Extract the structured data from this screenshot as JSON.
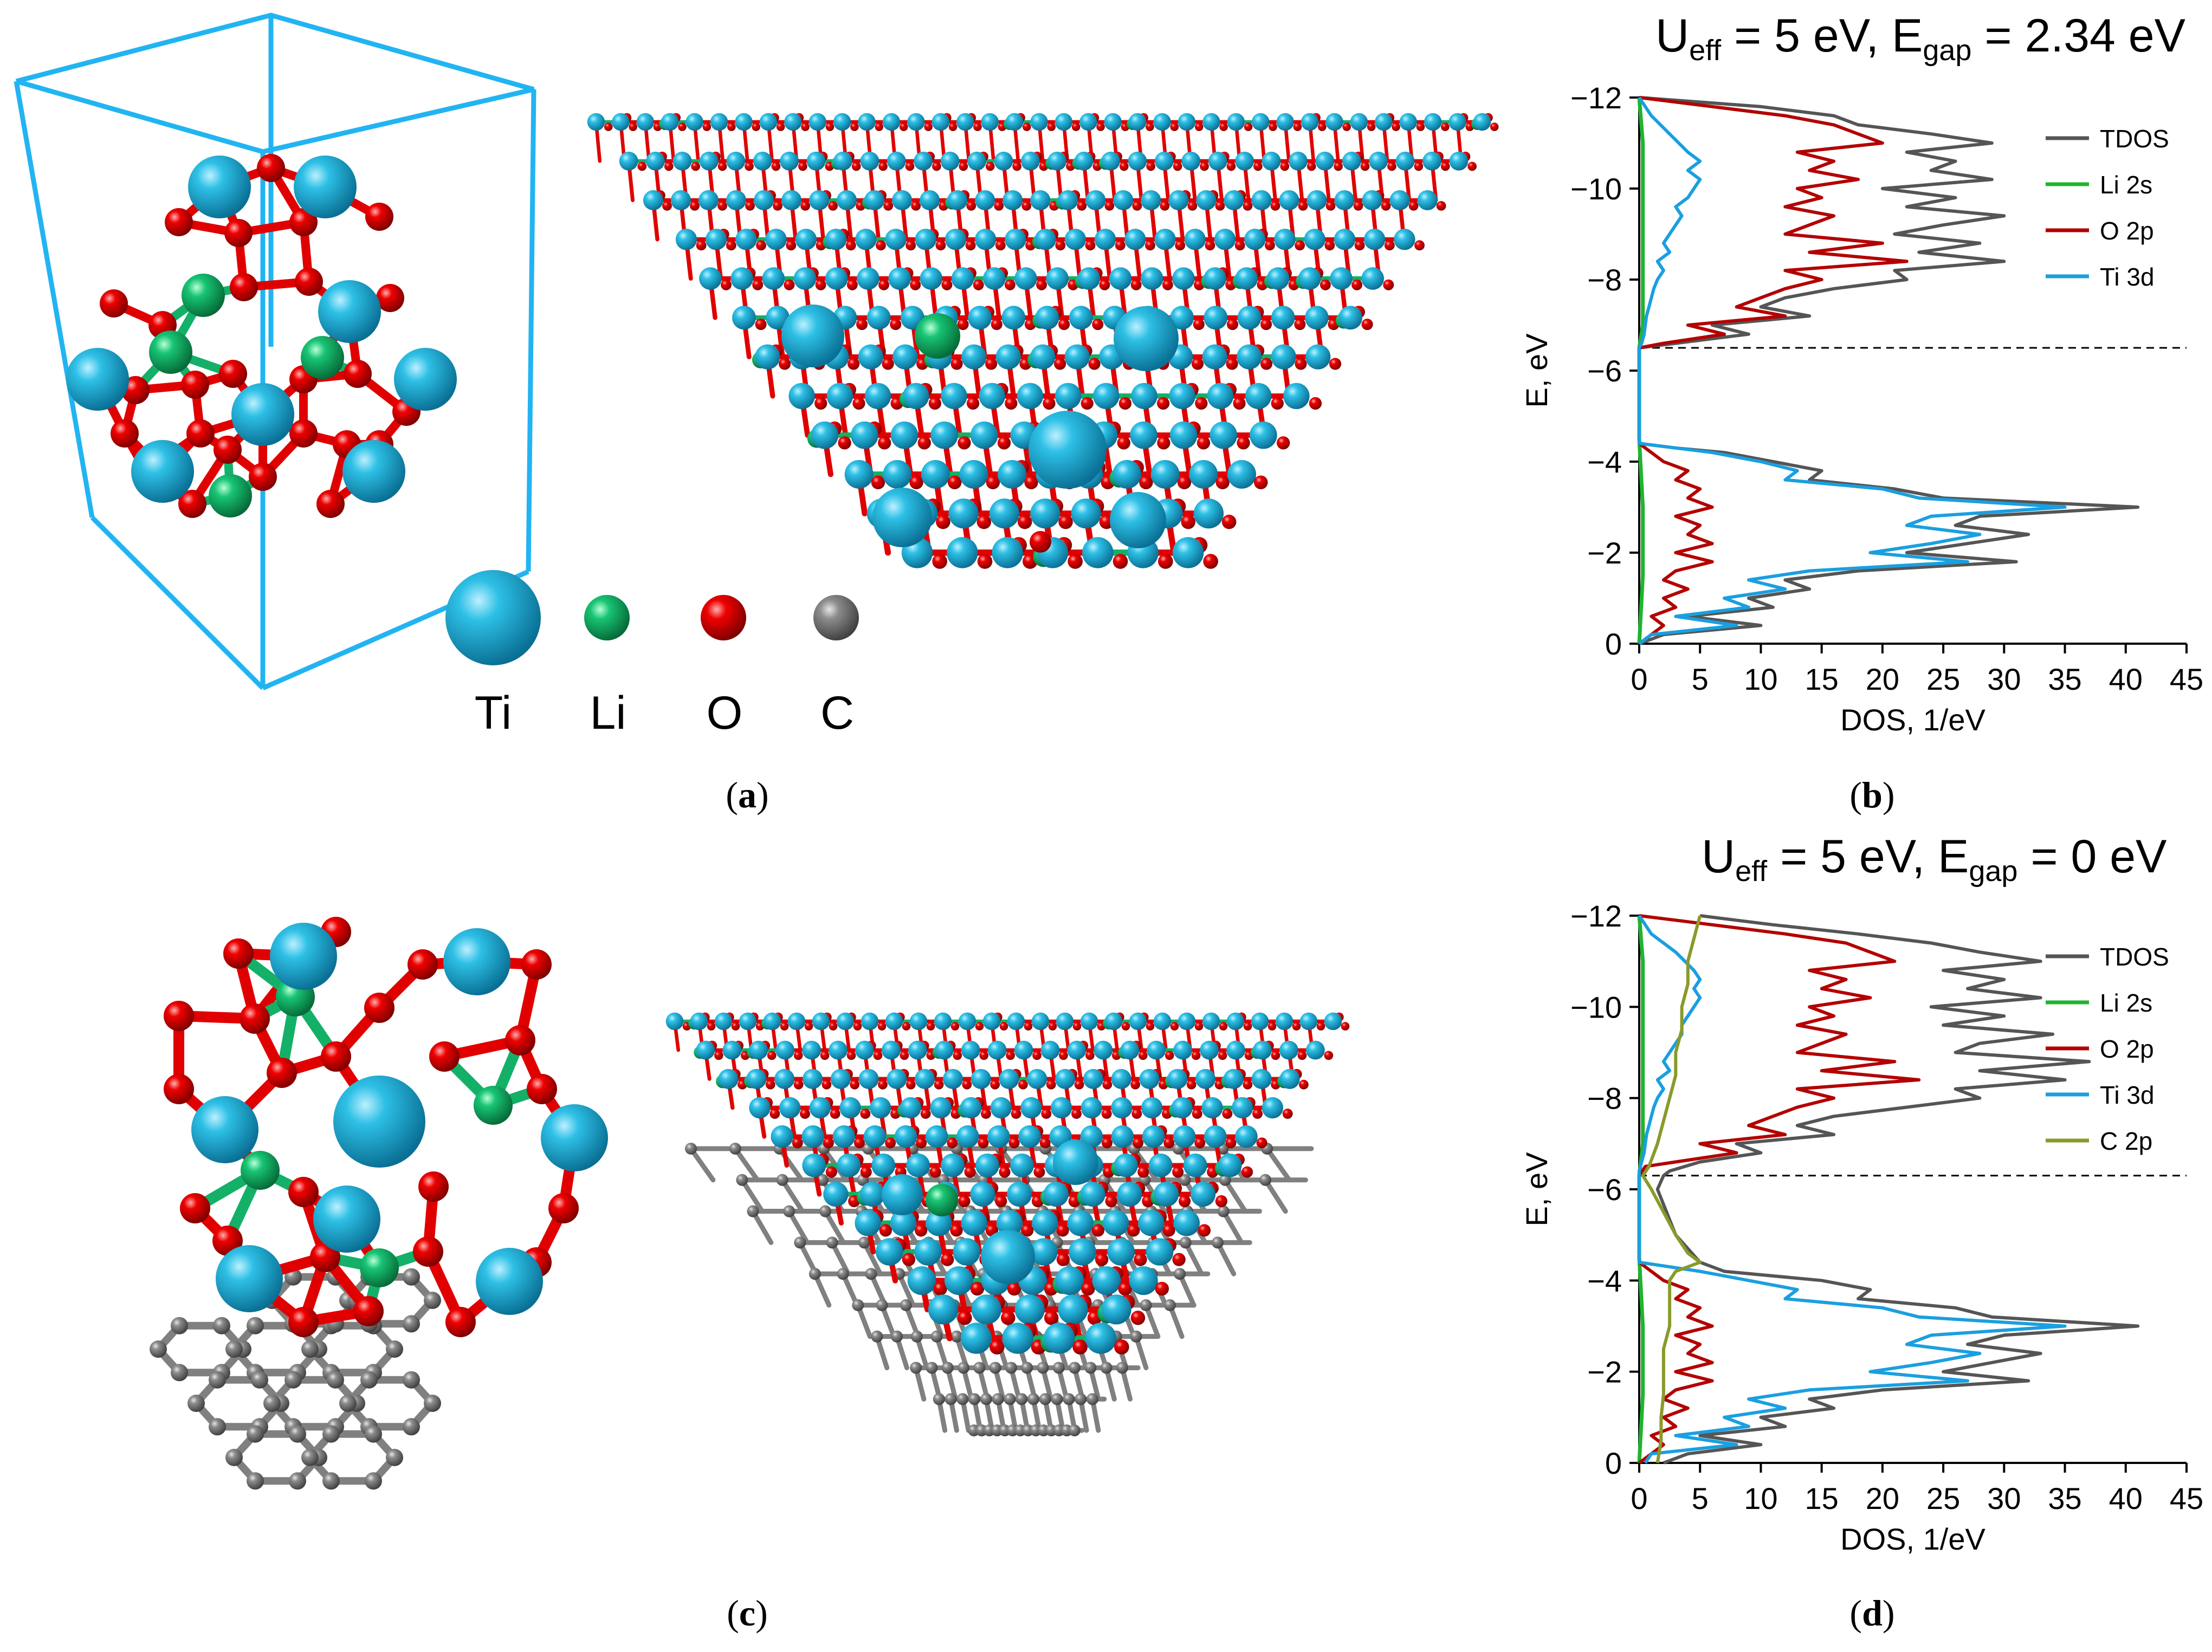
{
  "figure": {
    "colors": {
      "ti": "#1aa9d2",
      "li": "#12b46a",
      "o": "#e00000",
      "c": "#7a7a7a",
      "bond_li": "#14b068",
      "cell_box": "#22b4f2"
    },
    "legend": {
      "atoms": [
        {
          "symbol": "Ti",
          "color": "#1aa9d2"
        },
        {
          "symbol": "Li",
          "color": "#12b46a"
        },
        {
          "symbol": "O",
          "color": "#e00000"
        },
        {
          "symbol": "C",
          "color": "#7a7a7a"
        }
      ]
    },
    "panel_labels": {
      "a": "a",
      "b": "b",
      "c": "c",
      "d": "d"
    }
  },
  "chart_data": [
    {
      "id": "b",
      "type": "line",
      "title": {
        "u": "U",
        "u_sub": "eff",
        "mid": " = 5 eV, E",
        "e_sub": "gap",
        "tail": " = 2.34 eV"
      },
      "xlabel": "DOS, 1/eV",
      "ylabel": "E, eV",
      "xlim": [
        0,
        45
      ],
      "ylim": [
        -12,
        0
      ],
      "xticks": [
        "0",
        "5",
        "10",
        "15",
        "20",
        "25",
        "30",
        "35",
        "40",
        "45"
      ],
      "yticks": [
        "−12",
        "−10",
        "−8",
        "−6",
        "−4",
        "−2",
        "0"
      ],
      "fermi_level": -6.5,
      "legend": [
        "TDOS",
        "Li 2s",
        "O 2p",
        "Ti 3d"
      ],
      "series": [
        {
          "name": "TDOS",
          "color": "#555555",
          "E": [
            -12.0,
            -11.8,
            -11.6,
            -11.4,
            -11.2,
            -11.0,
            -10.8,
            -10.6,
            -10.4,
            -10.2,
            -10.0,
            -9.8,
            -9.6,
            -9.4,
            -9.2,
            -9.0,
            -8.8,
            -8.6,
            -8.4,
            -8.2,
            -8.0,
            -7.8,
            -7.6,
            -7.4,
            -7.2,
            -7.0,
            -6.8,
            -6.6,
            -6.5,
            -6.4,
            -4.4,
            -4.3,
            -4.2,
            -4.0,
            -3.8,
            -3.6,
            -3.4,
            -3.2,
            -3.0,
            -2.8,
            -2.6,
            -2.4,
            -2.2,
            -2.0,
            -1.8,
            -1.6,
            -1.4,
            -1.2,
            -1.0,
            -0.8,
            -0.6,
            -0.4,
            -0.2,
            0.0
          ],
          "v": [
            0,
            10,
            16,
            18,
            24,
            29,
            22,
            26,
            24,
            29,
            20,
            26,
            22,
            30,
            25,
            21,
            28,
            23,
            30,
            21,
            22,
            16,
            12,
            10,
            14,
            6,
            9,
            3,
            0,
            0,
            0,
            3,
            7,
            11,
            15,
            14,
            21,
            25,
            41,
            28,
            26,
            32,
            27,
            22,
            31,
            18,
            12,
            14,
            9,
            11,
            4,
            10,
            2,
            0
          ]
        },
        {
          "name": "Li 2s",
          "color": "#1db52c",
          "E": [
            -12.0,
            -11.0,
            -9.0,
            -7.0,
            -6.5,
            -4.5,
            -3.0,
            -1.5,
            0.0
          ],
          "v": [
            0,
            0.3,
            0.3,
            0.3,
            0,
            0,
            0.3,
            0.3,
            0
          ]
        },
        {
          "name": "O 2p",
          "color": "#b30000",
          "E": [
            -12.0,
            -11.8,
            -11.6,
            -11.4,
            -11.2,
            -11.0,
            -10.8,
            -10.6,
            -10.4,
            -10.2,
            -10.0,
            -9.8,
            -9.6,
            -9.4,
            -9.2,
            -9.0,
            -8.8,
            -8.6,
            -8.4,
            -8.2,
            -8.0,
            -7.8,
            -7.6,
            -7.4,
            -7.2,
            -7.0,
            -6.8,
            -6.6,
            -6.5,
            -6.4,
            -4.4,
            -4.2,
            -4.0,
            -3.8,
            -3.6,
            -3.4,
            -3.2,
            -3.0,
            -2.8,
            -2.6,
            -2.4,
            -2.2,
            -2.0,
            -1.8,
            -1.6,
            -1.4,
            -1.2,
            -1.0,
            -0.8,
            -0.6,
            -0.4,
            -0.2,
            0.0
          ],
          "v": [
            0,
            6,
            12,
            16,
            18,
            20,
            13,
            16,
            14,
            18,
            13,
            15,
            12,
            16,
            14,
            12,
            20,
            14,
            22,
            12,
            15,
            12,
            10,
            8,
            12,
            4,
            7,
            2,
            0,
            0,
            0,
            1,
            2,
            4,
            3,
            5,
            4,
            6,
            3,
            5,
            4,
            6,
            3,
            6,
            3,
            2,
            4,
            2,
            3,
            1,
            2,
            1,
            0
          ]
        },
        {
          "name": "Ti 3d",
          "color": "#1a9fe0",
          "E": [
            -12.0,
            -11.6,
            -11.2,
            -10.8,
            -10.6,
            -10.4,
            -10.2,
            -10.0,
            -9.8,
            -9.6,
            -9.4,
            -9.2,
            -9.0,
            -8.8,
            -8.6,
            -8.4,
            -8.2,
            -8.0,
            -7.8,
            -7.6,
            -7.4,
            -7.2,
            -7.0,
            -6.8,
            -6.6,
            -6.5,
            -6.4,
            -4.4,
            -4.3,
            -4.2,
            -4.0,
            -3.8,
            -3.6,
            -3.4,
            -3.2,
            -3.0,
            -2.8,
            -2.6,
            -2.4,
            -2.2,
            -2.0,
            -1.8,
            -1.6,
            -1.4,
            -1.2,
            -1.0,
            -0.8,
            -0.6,
            -0.4,
            -0.2,
            0.0
          ],
          "v": [
            0,
            1,
            2.5,
            4,
            5,
            4,
            5,
            4.5,
            4,
            3,
            3.5,
            3,
            2.5,
            2,
            2.5,
            1.5,
            2,
            1.5,
            1.2,
            1,
            0.8,
            0.6,
            0.5,
            0.4,
            0.2,
            0,
            0,
            0,
            3,
            6,
            10,
            13,
            12,
            20,
            23,
            35,
            24,
            22,
            28,
            24,
            19,
            27,
            14,
            9,
            12,
            7,
            9,
            3,
            8,
            1,
            0
          ]
        }
      ]
    },
    {
      "id": "d",
      "type": "line",
      "title": {
        "u": "U",
        "u_sub": "eff",
        "mid": " = 5 eV, E",
        "e_sub": "gap",
        "tail": " = 0 eV"
      },
      "xlabel": "DOS, 1/eV",
      "ylabel": "E, eV",
      "xlim": [
        0,
        45
      ],
      "ylim": [
        -12,
        0
      ],
      "xticks": [
        "0",
        "5",
        "10",
        "15",
        "20",
        "25",
        "30",
        "35",
        "40",
        "45"
      ],
      "yticks": [
        "−12",
        "−10",
        "−8",
        "−6",
        "−4",
        "−2",
        "0"
      ],
      "fermi_level": -6.3,
      "legend": [
        "TDOS",
        "Li 2s",
        "O 2p",
        "Ti 3d",
        "C 2p"
      ],
      "series": [
        {
          "name": "TDOS",
          "color": "#555555",
          "E": [
            -12.0,
            -11.8,
            -11.6,
            -11.4,
            -11.2,
            -11.0,
            -10.8,
            -10.6,
            -10.4,
            -10.2,
            -10.0,
            -9.8,
            -9.6,
            -9.4,
            -9.2,
            -9.0,
            -8.8,
            -8.6,
            -8.4,
            -8.2,
            -8.0,
            -7.8,
            -7.6,
            -7.4,
            -7.2,
            -7.0,
            -6.8,
            -6.6,
            -6.4,
            -6.3,
            -6.0,
            -5.0,
            -4.4,
            -4.2,
            -4.0,
            -3.8,
            -3.6,
            -3.4,
            -3.2,
            -3.0,
            -2.8,
            -2.6,
            -2.4,
            -2.2,
            -2.0,
            -1.8,
            -1.6,
            -1.4,
            -1.2,
            -1.0,
            -0.8,
            -0.6,
            -0.4,
            -0.2,
            0.0
          ],
          "v": [
            5,
            11,
            18,
            24,
            28,
            33,
            25,
            30,
            27,
            33,
            24,
            30,
            25,
            34,
            28,
            26,
            37,
            28,
            35,
            26,
            28,
            22,
            16,
            13,
            16,
            8,
            10,
            5,
            2.5,
            2,
            1.5,
            3,
            5,
            7,
            15,
            19,
            18,
            26,
            29,
            41,
            30,
            27,
            33,
            29,
            25,
            32,
            20,
            14,
            16,
            10,
            12,
            5,
            10,
            4,
            2
          ]
        },
        {
          "name": "Li 2s",
          "color": "#1db52c",
          "E": [
            -12.0,
            -11.0,
            -9.0,
            -7.0,
            -6.3,
            -4.5,
            -3.0,
            -1.5,
            0.0
          ],
          "v": [
            0,
            0.3,
            0.3,
            0.3,
            0,
            0,
            0.3,
            0.3,
            0
          ]
        },
        {
          "name": "O 2p",
          "color": "#b30000",
          "E": [
            -12.0,
            -11.8,
            -11.6,
            -11.4,
            -11.2,
            -11.0,
            -10.8,
            -10.6,
            -10.4,
            -10.2,
            -10.0,
            -9.8,
            -9.6,
            -9.4,
            -9.2,
            -9.0,
            -8.8,
            -8.6,
            -8.4,
            -8.2,
            -8.0,
            -7.8,
            -7.6,
            -7.4,
            -7.2,
            -7.0,
            -6.8,
            -6.6,
            -6.5,
            -6.3,
            -4.4,
            -4.2,
            -4.0,
            -3.8,
            -3.6,
            -3.4,
            -3.2,
            -3.0,
            -2.8,
            -2.6,
            -2.4,
            -2.2,
            -2.0,
            -1.8,
            -1.6,
            -1.4,
            -1.2,
            -1.0,
            -0.8,
            -0.6,
            -0.4,
            -0.2,
            0.0
          ],
          "v": [
            0,
            6,
            12,
            17,
            19,
            21,
            14,
            17,
            15,
            19,
            14,
            16,
            13,
            17,
            15,
            13,
            21,
            15,
            23,
            13,
            16,
            13,
            11,
            9,
            12,
            5,
            8,
            3,
            0.5,
            0,
            0,
            1,
            2,
            4,
            3,
            5,
            4,
            6,
            3,
            5,
            4,
            6,
            3,
            6,
            3,
            2,
            4,
            2,
            3,
            1,
            2,
            1,
            0
          ]
        },
        {
          "name": "Ti 3d",
          "color": "#1a9fe0",
          "E": [
            -12.0,
            -11.6,
            -11.2,
            -10.8,
            -10.6,
            -10.4,
            -10.2,
            -10.0,
            -9.8,
            -9.6,
            -9.4,
            -9.2,
            -9.0,
            -8.8,
            -8.6,
            -8.4,
            -8.2,
            -8.0,
            -7.8,
            -7.6,
            -7.4,
            -7.2,
            -7.0,
            -6.8,
            -6.6,
            -6.4,
            -6.3,
            -4.4,
            -4.2,
            -4.0,
            -3.8,
            -3.6,
            -3.4,
            -3.2,
            -3.0,
            -2.8,
            -2.6,
            -2.4,
            -2.2,
            -2.0,
            -1.8,
            -1.6,
            -1.4,
            -1.2,
            -1.0,
            -0.8,
            -0.6,
            -0.4,
            -0.2,
            0.0
          ],
          "v": [
            0,
            1,
            3,
            4.5,
            5,
            4.5,
            5,
            4.5,
            4,
            3.5,
            3.5,
            3,
            2.5,
            2,
            2.5,
            1.5,
            2,
            1.5,
            1.2,
            1,
            0.8,
            0.6,
            0.5,
            0.4,
            0.2,
            0,
            0,
            0,
            5,
            9,
            13,
            12,
            20,
            23,
            35,
            24,
            22,
            28,
            24,
            19,
            27,
            14,
            9,
            12,
            7,
            9,
            3,
            8,
            1,
            0.5
          ]
        },
        {
          "name": "C 2p",
          "color": "#8a9a2a",
          "E": [
            -12.0,
            -11.5,
            -11.0,
            -10.5,
            -10.0,
            -9.5,
            -9.0,
            -8.5,
            -8.0,
            -7.5,
            -7.0,
            -6.5,
            -6.3,
            -6.0,
            -5.5,
            -5.0,
            -4.6,
            -4.4,
            -4.2,
            -4.0,
            -3.5,
            -3.0,
            -2.5,
            -2.0,
            -1.5,
            -1.0,
            -0.5,
            0.0
          ],
          "v": [
            5,
            4.5,
            4,
            4,
            3.5,
            3.5,
            3,
            3,
            2.5,
            2,
            1.5,
            0.8,
            0.3,
            1,
            2,
            3,
            4,
            5,
            3,
            2.5,
            2.5,
            2.5,
            2,
            2,
            2,
            1.8,
            1.8,
            1.5
          ]
        }
      ]
    }
  ]
}
